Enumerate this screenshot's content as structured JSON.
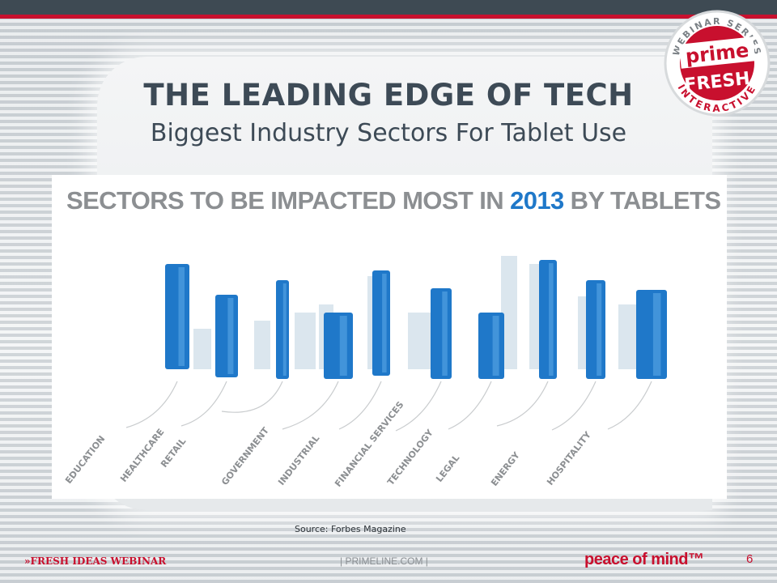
{
  "slide": {
    "title": "THE LEADING EDGE OF TECH",
    "subtitle": "Biggest Industry Sectors For Tablet Use",
    "source": "Source: Forbes Magazine",
    "page_number": "6"
  },
  "infographic": {
    "title_main": "SECTORS TO BE IMPACTED MOST IN ",
    "title_year": "2013",
    "title_tail": " BY TABLETS",
    "sectors": [
      "EDUCATION",
      "HEALTHCARE",
      "RETAIL",
      "GOVERNMENT",
      "INDUSTRIAL",
      "FINANCIAL SERVICES",
      "TECHNOLOGY",
      "LEGAL",
      "ENERGY",
      "HOSPITALITY"
    ],
    "colors": {
      "building_blue": "#1f78c9",
      "building_light": "#5aa7e6",
      "building_ghost": "#dbe6ee",
      "label_gray": "#8c8f92",
      "title_gray": "#8c8f92"
    }
  },
  "logo": {
    "ring_text_top": "WEBINAR SERIES",
    "ring_text_bottom": "INTERACTIVE",
    "word_top": "prime",
    "word_bottom": "FRESH"
  },
  "footer": {
    "left": "»FRESH IDEAS WEBINAR",
    "middle": "| PRIMELINE.COM |",
    "brand": "peace of mind™"
  },
  "colors": {
    "accent_red": "#c8102e",
    "title_slate": "#3d4a56",
    "topbar": "#3e4a53"
  }
}
